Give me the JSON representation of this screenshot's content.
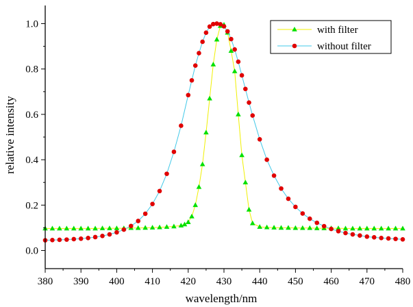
{
  "chart_data": {
    "type": "line",
    "title": "",
    "xlabel": "wavelength/nm",
    "ylabel": "relative intensity",
    "xlim": [
      380,
      480
    ],
    "ylim": [
      -0.08,
      1.08
    ],
    "xticks": [
      380,
      390,
      400,
      410,
      420,
      430,
      440,
      450,
      460,
      470,
      480
    ],
    "xtick_labels": [
      "380",
      "390",
      "400",
      "410",
      "420",
      "430",
      "440",
      "450",
      "460",
      "470",
      "480"
    ],
    "yticks": [
      0.0,
      0.2,
      0.4,
      0.6,
      0.8,
      1.0
    ],
    "ytick_labels": [
      "0.0",
      "0.2",
      "0.4",
      "0.6",
      "0.8",
      "1.0"
    ],
    "grid": false,
    "legend_position": "top-right",
    "series": [
      {
        "name": "with filter",
        "line_color": "#f0f000",
        "marker_color": "#00e000",
        "marker": "triangle",
        "x": [
          380,
          382,
          384,
          386,
          388,
          390,
          392,
          394,
          396,
          398,
          400,
          402,
          404,
          406,
          408,
          410,
          412,
          414,
          416,
          418,
          419,
          420,
          421,
          422,
          423,
          424,
          425,
          426,
          427,
          428,
          429,
          430,
          431,
          432,
          433,
          434,
          435,
          436,
          437,
          438,
          440,
          442,
          444,
          446,
          448,
          450,
          452,
          454,
          456,
          458,
          460,
          462,
          464,
          466,
          468,
          470,
          472,
          474,
          476,
          478,
          480
        ],
        "y": [
          0.097,
          0.097,
          0.097,
          0.097,
          0.097,
          0.097,
          0.097,
          0.097,
          0.098,
          0.098,
          0.098,
          0.098,
          0.099,
          0.099,
          0.1,
          0.101,
          0.102,
          0.104,
          0.106,
          0.11,
          0.115,
          0.125,
          0.15,
          0.2,
          0.28,
          0.38,
          0.52,
          0.67,
          0.82,
          0.93,
          0.99,
          0.995,
          0.96,
          0.88,
          0.79,
          0.6,
          0.42,
          0.3,
          0.18,
          0.12,
          0.104,
          0.102,
          0.101,
          0.1,
          0.1,
          0.099,
          0.099,
          0.099,
          0.098,
          0.098,
          0.098,
          0.098,
          0.097,
          0.097,
          0.097,
          0.097,
          0.097,
          0.097,
          0.097,
          0.097,
          0.097
        ]
      },
      {
        "name": "without filter",
        "line_color": "#40c8e8",
        "marker_color": "#e00000",
        "marker": "circle",
        "x": [
          380,
          382,
          384,
          386,
          388,
          390,
          392,
          394,
          396,
          398,
          400,
          402,
          404,
          406,
          408,
          410,
          412,
          414,
          416,
          418,
          420,
          421,
          422,
          423,
          424,
          425,
          426,
          427,
          428,
          429,
          430,
          431,
          432,
          433,
          434,
          435,
          436,
          437,
          438,
          440,
          442,
          444,
          446,
          448,
          450,
          452,
          454,
          456,
          458,
          460,
          462,
          464,
          466,
          468,
          470,
          472,
          474,
          476,
          478,
          480
        ],
        "y": [
          0.045,
          0.046,
          0.047,
          0.048,
          0.05,
          0.052,
          0.055,
          0.059,
          0.064,
          0.071,
          0.08,
          0.092,
          0.108,
          0.13,
          0.162,
          0.205,
          0.262,
          0.338,
          0.435,
          0.55,
          0.685,
          0.75,
          0.815,
          0.87,
          0.92,
          0.96,
          0.987,
          0.998,
          1.0,
          0.997,
          0.988,
          0.966,
          0.932,
          0.886,
          0.832,
          0.772,
          0.712,
          0.652,
          0.595,
          0.49,
          0.4,
          0.33,
          0.273,
          0.228,
          0.192,
          0.163,
          0.14,
          0.122,
          0.107,
          0.095,
          0.085,
          0.077,
          0.071,
          0.066,
          0.061,
          0.058,
          0.055,
          0.053,
          0.051,
          0.049
        ]
      }
    ]
  }
}
